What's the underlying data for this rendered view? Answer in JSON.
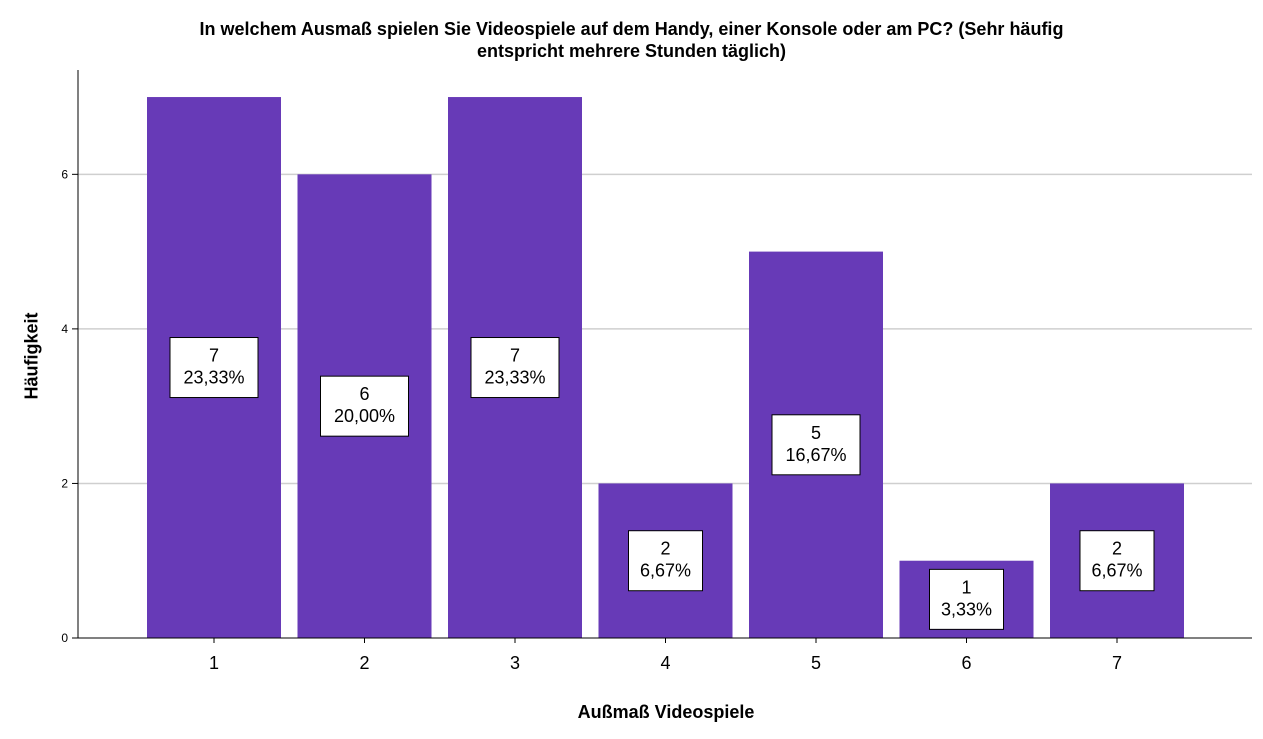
{
  "chart_data": {
    "type": "bar",
    "title": "In welchem Ausmaß spielen Sie Videospiele auf dem Handy, einer Konsole oder am PC? (Sehr häufig entspricht mehrere Stunden täglich)",
    "title_lines": [
      "In welchem Ausmaß spielen Sie Videospiele auf dem Handy, einer Konsole oder am PC? (Sehr häufig",
      "entspricht mehrere Stunden täglich)"
    ],
    "xlabel": "Außmaß Videospiele",
    "ylabel": "Häufigkeit",
    "categories": [
      "1",
      "2",
      "3",
      "4",
      "5",
      "6",
      "7"
    ],
    "values": [
      7,
      6,
      7,
      2,
      5,
      1,
      2
    ],
    "percent_labels": [
      "23,33%",
      "20,00%",
      "23,33%",
      "6,67%",
      "16,67%",
      "3,33%",
      "6,67%"
    ],
    "ylim": [
      0,
      7.35
    ],
    "yticks": [
      0,
      2,
      4,
      6
    ],
    "grid": true,
    "colors": {
      "bar": "#673ab7",
      "grid": "#cfcfcf",
      "axis": "#000000"
    }
  }
}
